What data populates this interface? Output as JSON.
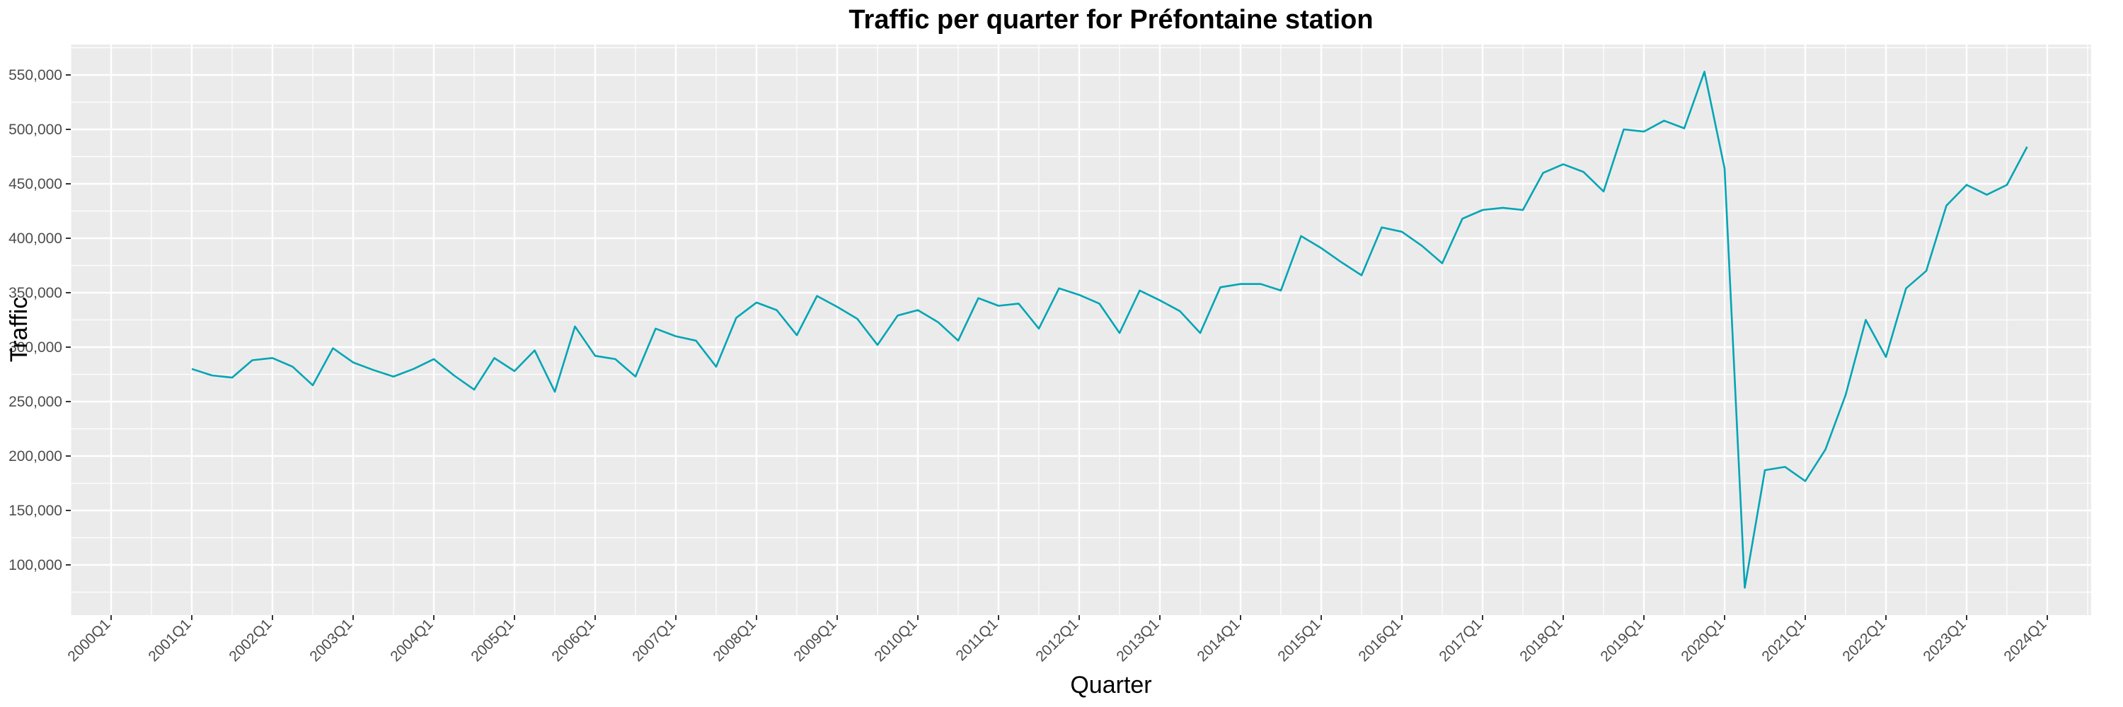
{
  "chart_data": {
    "type": "line",
    "title": "Traffic per quarter for Préfontaine station",
    "xlabel": "Quarter",
    "ylabel": "Traffic",
    "xlim": [
      "2000Q1",
      "2024Q1"
    ],
    "ylim": [
      100000,
      550000
    ],
    "grid": true,
    "line_color": "#00A5B5",
    "background_color": "#EBEBEB",
    "grid_color": "#FFFFFF",
    "x_tick_labels": [
      "2000Q1",
      "2001Q1",
      "2002Q1",
      "2003Q1",
      "2004Q1",
      "2005Q1",
      "2006Q1",
      "2007Q1",
      "2008Q1",
      "2009Q1",
      "2010Q1",
      "2011Q1",
      "2012Q1",
      "2013Q1",
      "2014Q1",
      "2015Q1",
      "2016Q1",
      "2017Q1",
      "2018Q1",
      "2019Q1",
      "2020Q1",
      "2021Q1",
      "2022Q1",
      "2023Q1",
      "2024Q1"
    ],
    "y_ticks": [
      100000,
      150000,
      200000,
      250000,
      300000,
      350000,
      400000,
      450000,
      500000,
      550000
    ],
    "y_tick_labels": [
      "100,000",
      "150,000",
      "200,000",
      "250,000",
      "300,000",
      "350,000",
      "400,000",
      "450,000",
      "500,000",
      "550,000"
    ],
    "series": [
      {
        "x": [
          "2001Q1",
          "2001Q2",
          "2001Q3",
          "2001Q4",
          "2002Q1",
          "2002Q2",
          "2002Q3",
          "2002Q4",
          "2003Q1",
          "2003Q2",
          "2003Q3",
          "2003Q4",
          "2004Q1",
          "2004Q2",
          "2004Q3",
          "2004Q4",
          "2005Q1",
          "2005Q2",
          "2005Q3",
          "2005Q4",
          "2006Q1",
          "2006Q2",
          "2006Q3",
          "2006Q4",
          "2007Q1",
          "2007Q2",
          "2007Q3",
          "2007Q4",
          "2008Q1",
          "2008Q2",
          "2008Q3",
          "2008Q4",
          "2009Q1",
          "2009Q2",
          "2009Q3",
          "2009Q4",
          "2010Q1",
          "2010Q2",
          "2010Q3",
          "2010Q4",
          "2011Q1",
          "2011Q2",
          "2011Q3",
          "2011Q4",
          "2012Q1",
          "2012Q2",
          "2012Q3",
          "2012Q4",
          "2013Q1",
          "2013Q2",
          "2013Q3",
          "2013Q4",
          "2014Q1",
          "2014Q2",
          "2014Q3",
          "2014Q4",
          "2015Q1",
          "2015Q2",
          "2015Q3",
          "2015Q4",
          "2016Q1",
          "2016Q2",
          "2016Q3",
          "2016Q4",
          "2017Q1",
          "2017Q2",
          "2017Q3",
          "2017Q4",
          "2018Q1",
          "2018Q2",
          "2018Q3",
          "2018Q4",
          "2019Q1",
          "2019Q2",
          "2019Q3",
          "2019Q4",
          "2020Q1",
          "2020Q2",
          "2020Q3",
          "2020Q4",
          "2021Q1",
          "2021Q2",
          "2021Q3",
          "2021Q4",
          "2022Q1",
          "2022Q2",
          "2022Q3",
          "2022Q4",
          "2023Q1",
          "2023Q2",
          "2023Q3",
          "2023Q4"
        ],
        "values": [
          280000,
          274000,
          272000,
          288000,
          290000,
          282000,
          265000,
          299000,
          286000,
          279000,
          273000,
          280000,
          289000,
          274000,
          261000,
          290000,
          278000,
          297000,
          259000,
          319000,
          292000,
          289000,
          273000,
          317000,
          310000,
          306000,
          282000,
          327000,
          341000,
          334000,
          311000,
          347000,
          337000,
          326000,
          302000,
          329000,
          334000,
          323000,
          306000,
          345000,
          338000,
          340000,
          317000,
          354000,
          348000,
          340000,
          313000,
          352000,
          343000,
          333000,
          313000,
          355000,
          358000,
          358000,
          352000,
          402000,
          391000,
          378000,
          366000,
          410000,
          406000,
          393000,
          377000,
          418000,
          426000,
          428000,
          426000,
          460000,
          468000,
          461000,
          443000,
          500000,
          498000,
          508000,
          501000,
          553000,
          464000,
          79000,
          187000,
          190000,
          177000,
          206000,
          256000,
          325000,
          291000,
          354000,
          370000,
          430000,
          449000,
          440000,
          449000,
          484000
        ]
      }
    ]
  }
}
